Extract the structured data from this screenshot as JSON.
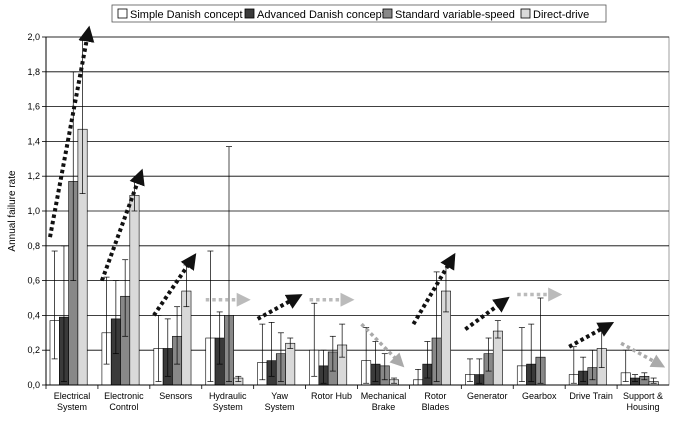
{
  "chart_data": {
    "type": "bar",
    "title": "",
    "xlabel": "",
    "ylabel": "Annual failure rate",
    "ylim": [
      0,
      2.0
    ],
    "yticks": [
      "0,0",
      "0,2",
      "0,4",
      "0,6",
      "0,8",
      "1,0",
      "1,2",
      "1,4",
      "1,6",
      "1,8",
      "2,0"
    ],
    "grid": true,
    "legend_position": "top",
    "categories": [
      [
        "Electrical",
        "System"
      ],
      [
        "Electronic",
        "Control"
      ],
      [
        "Sensors"
      ],
      [
        "Hydraulic",
        "System"
      ],
      [
        "Yaw",
        "System"
      ],
      [
        "Rotor Hub"
      ],
      [
        "Mechanical",
        "Brake"
      ],
      [
        "Rotor",
        "Blades"
      ],
      [
        "Generator"
      ],
      [
        "Gearbox"
      ],
      [
        "Drive Train"
      ],
      [
        "Support &",
        "Housing"
      ]
    ],
    "series": [
      {
        "name": "Simple Danish concept",
        "color": "#ffffff",
        "values": [
          0.37,
          0.3,
          0.21,
          0.27,
          0.13,
          0.2,
          0.14,
          0.03,
          0.06,
          0.11,
          0.06,
          0.07
        ],
        "err_low": [
          0.15,
          0.12,
          0.02,
          0.02,
          0.03,
          0.05,
          0.01,
          0.0,
          0.02,
          0.02,
          0.01,
          0.02
        ],
        "err_high": [
          0.77,
          0.62,
          0.4,
          0.77,
          0.35,
          0.47,
          0.33,
          0.09,
          0.15,
          0.33,
          0.22,
          0.2
        ]
      },
      {
        "name": "Advanced Danish concept",
        "color": "#3a3a3a",
        "values": [
          0.39,
          0.38,
          0.21,
          0.27,
          0.14,
          0.11,
          0.12,
          0.12,
          0.06,
          0.12,
          0.08,
          0.04
        ],
        "err_low": [
          0.02,
          0.18,
          0.05,
          0.12,
          0.05,
          0.01,
          0.02,
          0.04,
          0.01,
          0.02,
          0.02,
          0.02
        ],
        "err_high": [
          0.8,
          0.6,
          0.38,
          0.42,
          0.36,
          0.2,
          0.25,
          0.25,
          0.15,
          0.35,
          0.16,
          0.06
        ]
      },
      {
        "name": "Standard variable-speed",
        "color": "#888888",
        "values": [
          1.17,
          0.51,
          0.28,
          0.4,
          0.18,
          0.19,
          0.11,
          0.27,
          0.18,
          0.16,
          0.1,
          0.05
        ],
        "err_low": [
          0.6,
          0.28,
          0.12,
          0.02,
          0.02,
          0.08,
          0.03,
          0.02,
          0.08,
          0.01,
          0.03,
          0.03
        ],
        "err_high": [
          1.8,
          0.72,
          0.45,
          1.37,
          0.3,
          0.28,
          0.18,
          0.65,
          0.27,
          0.5,
          0.2,
          0.07
        ]
      },
      {
        "name": "Direct-drive",
        "color": "#d9d9d9",
        "values": [
          1.47,
          1.09,
          0.54,
          0.04,
          0.24,
          0.23,
          0.03,
          0.54,
          0.31,
          0,
          0.21,
          0.02
        ],
        "err_low": [
          1.1,
          1.0,
          0.45,
          0.02,
          0.21,
          0.16,
          0.01,
          0.42,
          0.27,
          0,
          0.1,
          0.01
        ],
        "err_high": [
          1.98,
          1.18,
          0.69,
          0.05,
          0.27,
          0.35,
          0.04,
          0.7,
          0.37,
          0,
          0.33,
          0.04
        ]
      }
    ],
    "trend_arrows": [
      {
        "category": 0,
        "from": 0.85,
        "to": 2.02,
        "color": "#111111"
      },
      {
        "category": 1,
        "from": 0.6,
        "to": 1.2,
        "color": "#111111"
      },
      {
        "category": 2,
        "from": 0.4,
        "to": 0.72,
        "color": "#111111"
      },
      {
        "category": 3,
        "from": 0.49,
        "to": 0.49,
        "color": "#bbbbbb"
      },
      {
        "category": 4,
        "from": 0.38,
        "to": 0.5,
        "color": "#111111"
      },
      {
        "category": 5,
        "from": 0.49,
        "to": 0.49,
        "color": "#bbbbbb"
      },
      {
        "category": 6,
        "from": 0.35,
        "to": 0.13,
        "color": "#aaaaaa"
      },
      {
        "category": 7,
        "from": 0.35,
        "to": 0.72,
        "color": "#111111"
      },
      {
        "category": 8,
        "from": 0.32,
        "to": 0.48,
        "color": "#111111"
      },
      {
        "category": 9,
        "from": 0.52,
        "to": 0.52,
        "color": "#bbbbbb"
      },
      {
        "category": 10,
        "from": 0.22,
        "to": 0.34,
        "color": "#111111"
      },
      {
        "category": 11,
        "from": 0.24,
        "to": 0.12,
        "color": "#aaaaaa"
      }
    ]
  }
}
